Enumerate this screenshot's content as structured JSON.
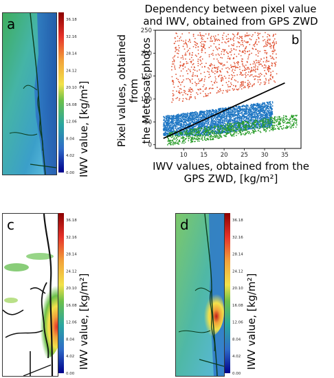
{
  "panels": {
    "a": {
      "label": "a",
      "colorbar_label": "IWV value, [kg/m²]"
    },
    "b": {
      "label": "b"
    },
    "c": {
      "label": "c",
      "colorbar_label": "IWV value, [kg/m²]"
    },
    "d": {
      "label": "d",
      "colorbar_label": "IWV value, [kg/m²]"
    }
  },
  "colorbar_ticks": [
    "36.18",
    "32.16",
    "28.14",
    "24.12",
    "20.10",
    "16.08",
    "12.06",
    "8.04",
    "4.02",
    "0.00"
  ],
  "colors": {
    "colorbar_top": "#8b0000",
    "colorbar_mid": "#2e8b57",
    "colorbar_bottom": "#00008b",
    "scatter_red": "#e05030",
    "scatter_blue": "#1f77c4",
    "scatter_green": "#2a9d2a",
    "fit_line": "#000000"
  },
  "chart_data": {
    "type": "scatter",
    "title": "Dependency between pixel value and IWV, obtained from GPS ZWD",
    "title_lines": [
      "Dependency between pixel value",
      "and IWV, obtained from GPS ZWD"
    ],
    "xlabel": "IWV values, obtained from the GPS ZWD, [kg/m²]",
    "xlabel_lines": [
      "IWV values, obtained from the",
      "GPS ZWD, [kg/m²]"
    ],
    "ylabel": "Pixel values, obtained from the Meteosat photos",
    "ylabel_lines": [
      "Pixel values, obtained from",
      "the Meteosat photos"
    ],
    "xlim": [
      3,
      39
    ],
    "ylim": [
      -8,
      250
    ],
    "xticks": [
      10,
      15,
      20,
      25,
      30,
      35
    ],
    "yticks": [
      0,
      50,
      100,
      150,
      200,
      250
    ],
    "grid": false,
    "series": [
      {
        "color": "red",
        "x_range": [
          7,
          33
        ],
        "y_range": [
          70,
          245
        ],
        "count": 900
      },
      {
        "color": "blue",
        "x_range": [
          5,
          32
        ],
        "y_range": [
          20,
          110
        ],
        "count": 3500
      },
      {
        "color": "green",
        "x_range": [
          6,
          38
        ],
        "y_range": [
          0,
          65
        ],
        "count": 900
      }
    ],
    "fit_line": {
      "x": [
        5,
        35
      ],
      "y": [
        14,
        135
      ]
    }
  }
}
